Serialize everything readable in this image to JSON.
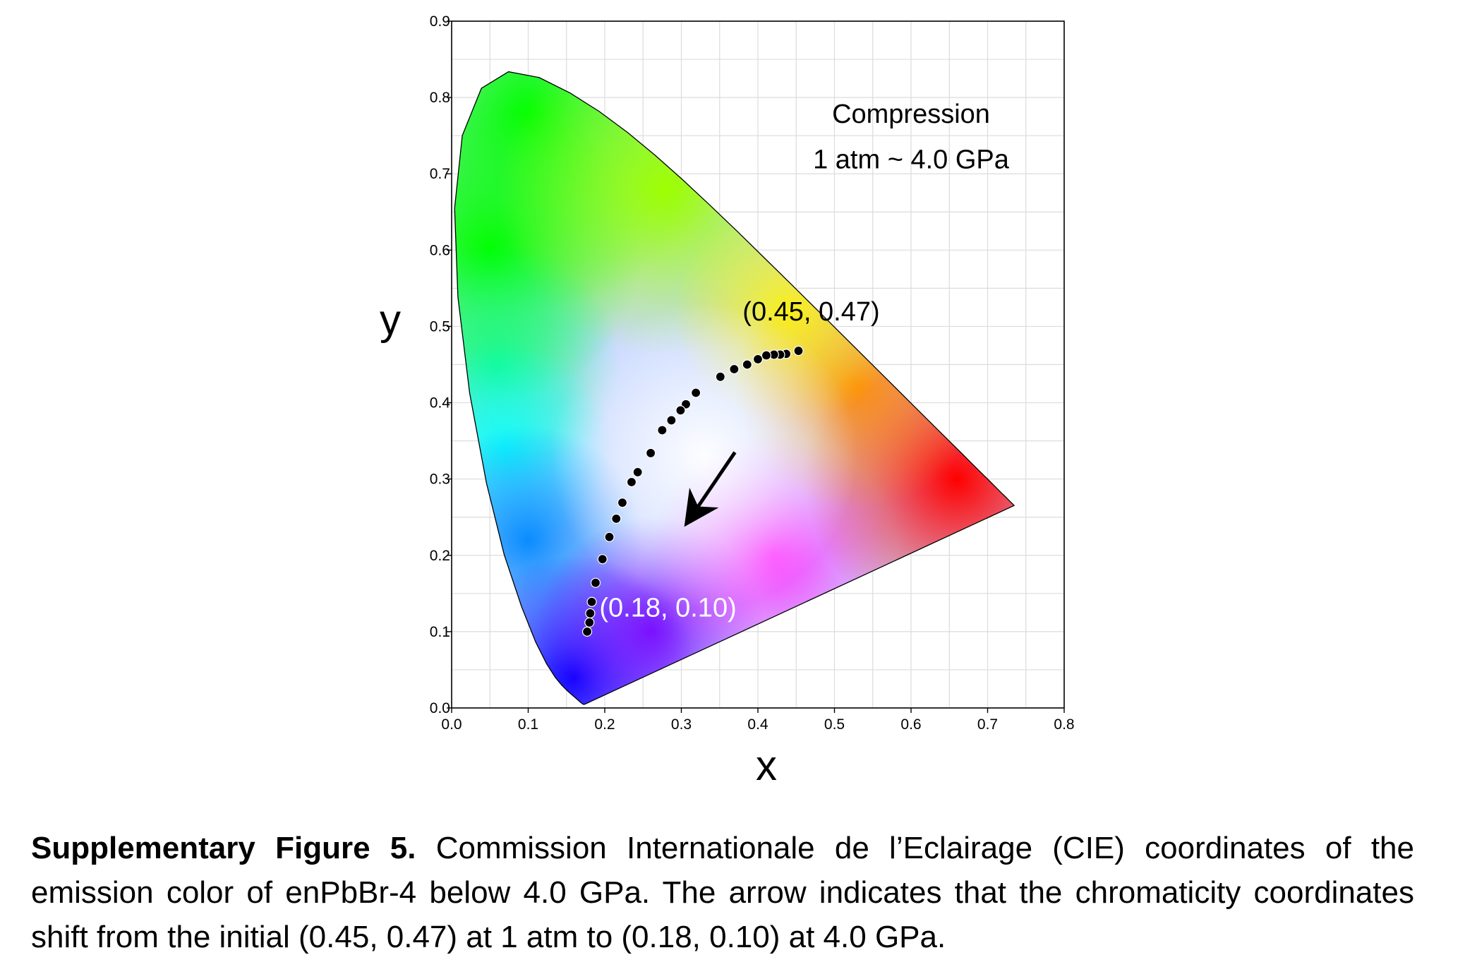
{
  "chart_data": {
    "type": "scatter",
    "title": "",
    "xlabel": "x",
    "ylabel": "y",
    "xlim": [
      0.0,
      0.8
    ],
    "ylim": [
      0.0,
      0.9
    ],
    "x_ticks": [
      "0.0",
      "0.1",
      "0.2",
      "0.3",
      "0.4",
      "0.5",
      "0.6",
      "0.7",
      "0.8"
    ],
    "y_ticks": [
      "0.0",
      "0.1",
      "0.2",
      "0.3",
      "0.4",
      "0.5",
      "0.6",
      "0.7",
      "0.8",
      "0.9"
    ],
    "grid": true,
    "background": "CIE 1931 chromaticity diagram",
    "series": [
      {
        "color": "#000000",
        "x": [
          0.453,
          0.437,
          0.429,
          0.421,
          0.411,
          0.4,
          0.386,
          0.369,
          0.351,
          0.319,
          0.306,
          0.299,
          0.287,
          0.275,
          0.26,
          0.243,
          0.235,
          0.223,
          0.215,
          0.206,
          0.197,
          0.188,
          0.183,
          0.181,
          0.18,
          0.177
        ],
        "y": [
          0.468,
          0.464,
          0.463,
          0.463,
          0.462,
          0.457,
          0.45,
          0.444,
          0.434,
          0.413,
          0.398,
          0.39,
          0.377,
          0.364,
          0.334,
          0.309,
          0.296,
          0.269,
          0.248,
          0.224,
          0.195,
          0.164,
          0.139,
          0.124,
          0.112,
          0.1
        ]
      }
    ],
    "annotations": [
      {
        "text": "Compression",
        "x": 0.6,
        "y": 0.767
      },
      {
        "text": "1 atm ~ 4.0 GPa",
        "x": 0.6,
        "y": 0.707
      },
      {
        "text": "(0.45, 0.47)",
        "x": 0.38,
        "y": 0.508,
        "color": "#000000"
      },
      {
        "text": "(0.18, 0.10)",
        "x": 0.193,
        "y": 0.12,
        "color": "#ffffff"
      }
    ],
    "arrow": {
      "from": [
        0.37,
        0.335
      ],
      "to": [
        0.309,
        0.245
      ]
    }
  },
  "caption": {
    "label": "Supplementary Figure 5.",
    "text": " Commission Internationale de l’Eclairage (CIE) coordinates of the emission color of enPbBr-4 below 4.0 GPa. The arrow indicates that the chromaticity coordinates shift from the initial (0.45, 0.47) at 1 atm to (0.18, 0.10) at 4.0 GPa."
  }
}
